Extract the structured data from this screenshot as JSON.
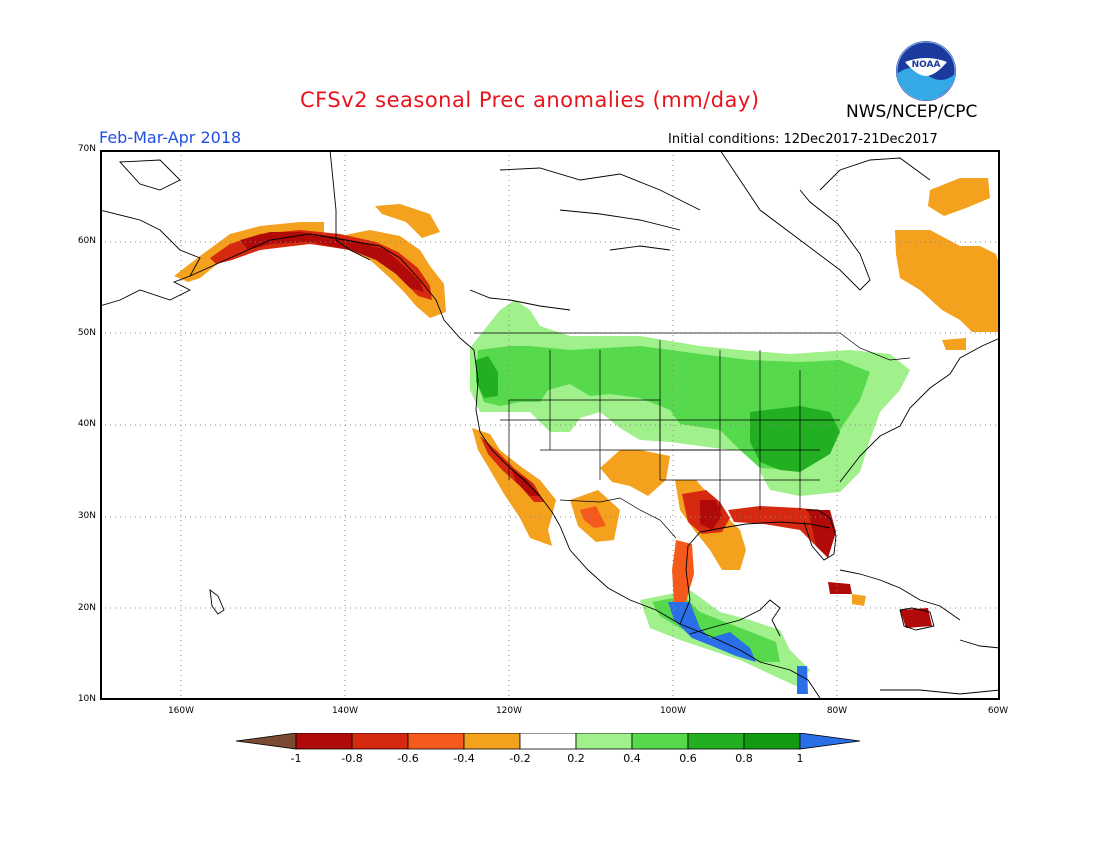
{
  "header": {
    "title": "CFSv2 seasonal Prec anomalies (mm/day)",
    "season": "Feb-Mar-Apr 2018",
    "agency": "NWS/NCEP/CPC",
    "initial_conditions": "Initial conditions: 12Dec2017-21Dec2017",
    "logo_text": "NOAA"
  },
  "axes": {
    "lat_labels": [
      "70N",
      "60N",
      "50N",
      "40N",
      "30N",
      "20N",
      "10N"
    ],
    "lon_labels": [
      "160W",
      "140W",
      "120W",
      "100W",
      "80W",
      "60W"
    ]
  },
  "colorbar": {
    "labels": [
      "-1",
      "-0.8",
      "-0.6",
      "-0.4",
      "-0.2",
      "0.2",
      "0.4",
      "0.6",
      "0.8",
      "1"
    ],
    "colors": [
      "#7a4a32",
      "#b00a0a",
      "#d62a10",
      "#f55a1c",
      "#f4a11e",
      "#ffffff",
      "#a0f08c",
      "#56d94c",
      "#22b022",
      "#129a12",
      "#2a6fe6"
    ]
  },
  "map_colors": {
    "neg_light": "#f4a11e",
    "neg_mid": "#f55a1c",
    "neg_strong": "#d62a10",
    "neg_vstrong": "#b00a0a",
    "pos_light": "#a0f08c",
    "pos_mid": "#56d94c",
    "pos_strong": "#22b022",
    "pos_vstrong": "#129a12",
    "pos_extreme": "#2a6fe6",
    "border": "#000000",
    "grid": "#888888"
  }
}
